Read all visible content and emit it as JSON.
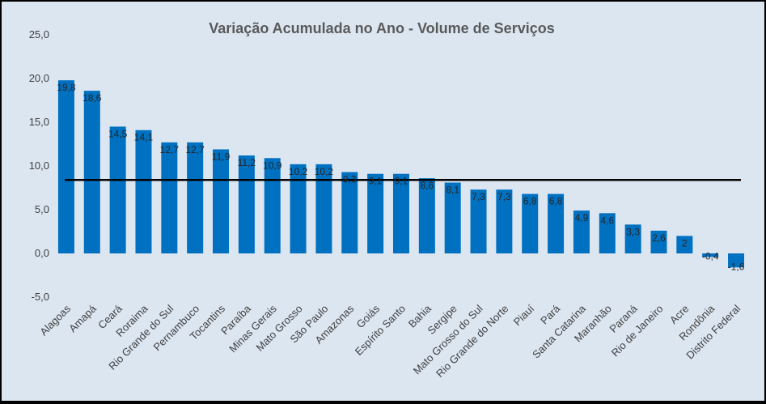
{
  "chart_data": {
    "type": "bar",
    "title": "Variação Acumulada no Ano - Volume de Serviços",
    "categories": [
      "Alagoas",
      "Amapá",
      "Ceará",
      "Roraima",
      "Rio Grande do Sul",
      "Pernambuco",
      "Tocantins",
      "Paraíba",
      "Minas Gerais",
      "Mato Grosso",
      "São Paulo",
      "Amazonas",
      "Goiás",
      "Espírito Santo",
      "Bahia",
      "Sergipe",
      "Mato Grosso do Sul",
      "Rio Grande do Norte",
      "Piauí",
      "Pará",
      "Santa Catarina",
      "Maranhão",
      "Paraná",
      "Rio de Janeiro",
      "Acre",
      "Rondônia",
      "Distrito Federal"
    ],
    "values": [
      19.8,
      18.6,
      14.5,
      14.1,
      12.7,
      12.7,
      11.9,
      11.2,
      10.9,
      10.2,
      10.2,
      9.3,
      9.1,
      9.1,
      8.6,
      8.1,
      7.3,
      7.3,
      6.8,
      6.8,
      4.9,
      4.6,
      3.3,
      2.6,
      2,
      -0.4,
      -1.6
    ],
    "data_labels": [
      "19,8",
      "18,6",
      "14,5",
      "14,1",
      "12,7",
      "12,7",
      "11,9",
      "11,2",
      "10,9",
      "10,2",
      "10,2",
      "9,3",
      "9,1",
      "9,1",
      "8,6",
      "8,1",
      "7,3",
      "7,3",
      "6,8",
      "6,8",
      "4,9",
      "4,6",
      "3,3",
      "2,6",
      "2",
      "-0,4",
      "-1,6"
    ],
    "yticks": [
      "25,0",
      "20,0",
      "15,0",
      "10,0",
      "5,0",
      "0,0",
      "-5,0"
    ],
    "ytick_values": [
      25,
      20,
      15,
      10,
      5,
      0,
      -5
    ],
    "ylim": [
      -5,
      25
    ],
    "reference_line": 8.4,
    "grid": false,
    "colors": {
      "bar": "#0070c0",
      "background": "#dce6f1",
      "reference_line": "#000000"
    }
  }
}
